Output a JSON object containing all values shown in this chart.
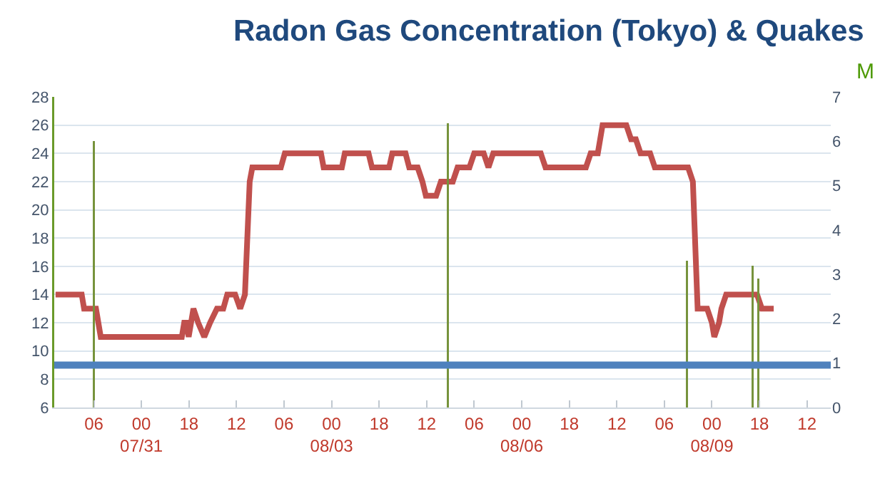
{
  "chart_data": {
    "type": "line",
    "title": "Radon Gas Concentration (Tokyo) & Quakes",
    "y2label": "M",
    "xlim": [
      "--07-29T15:00",
      "--08-10T21:00"
    ],
    "xticks": [
      {
        "value": "--07-30T06:00",
        "label": "06"
      },
      {
        "value": "--07-31T00:00",
        "label": "00\n07/31"
      },
      {
        "value": "--07-31T18:00",
        "label": "18"
      },
      {
        "value": "--08-01T12:00",
        "label": "12"
      },
      {
        "value": "--08-02T06:00",
        "label": "06"
      },
      {
        "value": "--08-03T00:00",
        "label": "00\n08/03"
      },
      {
        "value": "--08-03T18:00",
        "label": "18"
      },
      {
        "value": "--08-04T12:00",
        "label": "12"
      },
      {
        "value": "--08-05T06:00",
        "label": "06"
      },
      {
        "value": "--08-06T00:00",
        "label": "00\n08/06"
      },
      {
        "value": "--08-06T18:00",
        "label": "18"
      },
      {
        "value": "--08-07T12:00",
        "label": "12"
      },
      {
        "value": "--08-08T06:00",
        "label": "06"
      },
      {
        "value": "--08-09T00:00",
        "label": "00\n08/09"
      },
      {
        "value": "--08-09T18:00",
        "label": "18"
      },
      {
        "value": "--08-10T12:00",
        "label": "12"
      }
    ],
    "ylim": [
      6,
      28
    ],
    "yticks": [
      6,
      8,
      10,
      12,
      14,
      16,
      18,
      20,
      22,
      24,
      26,
      28
    ],
    "y2lim": [
      0,
      7
    ],
    "y2ticks": [
      0,
      1,
      2,
      3,
      4,
      5,
      6,
      7
    ],
    "grid": "y",
    "marker": "none",
    "line_style": "solid",
    "ref_lines": [
      {
        "axis": "y",
        "value": 9,
        "color": "#4f81bd"
      }
    ],
    "series": [
      {
        "color": "#c0504d",
        "x": [
          "--07-29T15:30",
          "--07-30T01:24",
          "--07-30T02:18",
          "--07-30T06:48",
          "--07-30T08:36",
          "--07-31T15:18",
          "--07-31T16:12",
          "--07-31T17:00",
          "--07-31T17:54",
          "--07-31T19:42",
          "--07-31T21:30",
          "--07-31T23:48",
          "--08-01T02:00",
          "--08-01T04:36",
          "--08-01T07:00",
          "--08-01T08:30",
          "--08-01T11:30",
          "--08-01T13:24",
          "--08-01T15:12",
          "--08-01T17:00",
          "--08-01T18:00",
          "--08-02T04:48",
          "--08-02T06:18",
          "--08-02T20:00",
          "--08-02T21:00",
          "--08-03T03:54",
          "--08-03T05:00",
          "--08-03T14:00",
          "--08-03T15:18",
          "--08-03T21:48",
          "--08-03T23:00",
          "--08-04T04:00",
          "--08-04T05:24",
          "--08-04T08:36",
          "--08-04T10:24",
          "--08-04T11:42",
          "--08-04T15:36",
          "--08-04T17:24",
          "--08-04T21:54",
          "--08-04T23:42",
          "--08-05T04:12",
          "--08-05T06:00",
          "--08-05T09:36",
          "--08-05T11:24",
          "--08-05T13:12",
          "--08-06T07:12",
          "--08-06T09:00",
          "--08-07T00:18",
          "--08-07T02:06",
          "--08-07T04:48",
          "--08-07T06:36",
          "--08-07T15:36",
          "--08-07T17:24",
          "--08-07T19:12",
          "--08-07T21:00",
          "--08-08T00:36",
          "--08-08T02:24",
          "--08-08T15:00",
          "--08-08T16:48",
          "--08-08T18:36",
          "--08-08T22:12",
          "--08-09T00:00",
          "--08-09T00:54",
          "--08-09T02:42",
          "--08-09T03:36",
          "--08-09T05:24",
          "--08-09T17:06",
          "--08-09T18:54",
          "--08-09T23:24"
        ],
        "values": [
          14,
          14,
          13,
          13,
          11,
          11,
          12,
          12,
          11,
          13,
          12,
          11,
          12,
          13,
          13,
          14,
          14,
          13,
          14,
          22,
          23,
          23,
          24,
          24,
          23,
          23,
          24,
          24,
          23,
          23,
          24,
          24,
          23,
          23,
          22,
          21,
          21,
          22,
          22,
          23,
          23,
          24,
          24,
          23,
          24,
          24,
          23,
          23,
          24,
          24,
          26,
          26,
          25,
          25,
          24,
          24,
          23,
          23,
          22,
          13,
          13,
          12,
          11,
          12,
          13,
          14,
          14,
          13,
          13
        ]
      },
      {
        "type": "bar",
        "axis": "y2",
        "color": "#77933c",
        "x": [
          "--07-30T06:00",
          "--08-04T20:00",
          "--08-08T14:30",
          "--08-09T15:30",
          "--08-09T17:30"
        ],
        "values": [
          6.0,
          6.4,
          3.3,
          3.2,
          2.9
        ]
      }
    ]
  }
}
